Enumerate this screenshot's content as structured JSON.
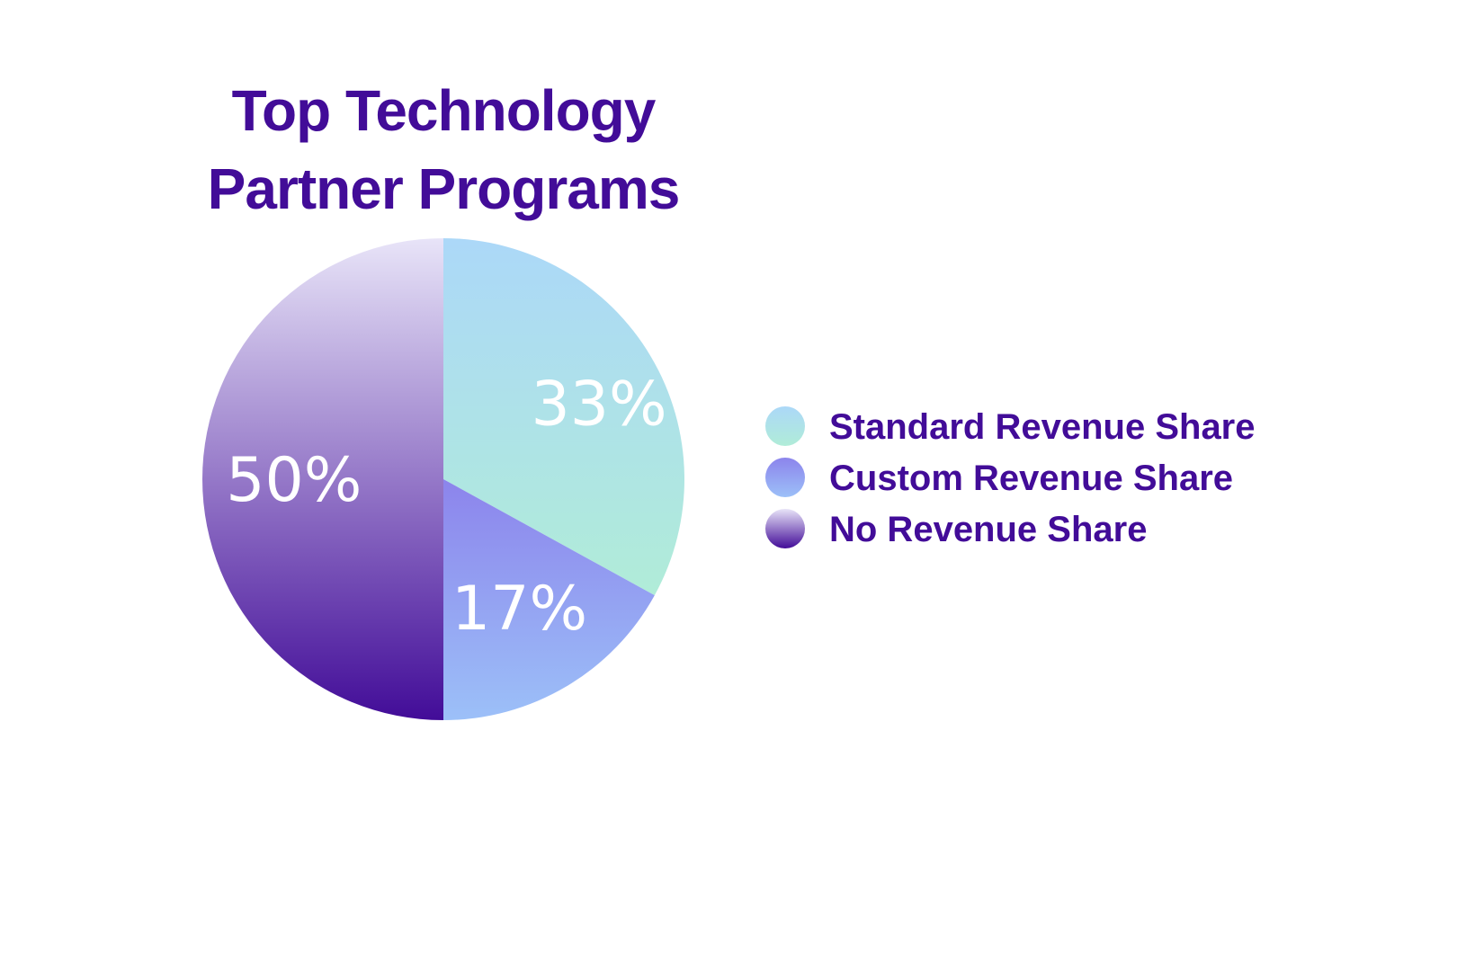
{
  "chart_data": {
    "type": "pie",
    "title_lines": [
      "Top Technology",
      "Partner Programs"
    ],
    "slices": [
      {
        "label": "Standard Revenue Share",
        "value": 33,
        "display": "33%",
        "gradient": [
          "#acd8f8",
          "#b0ecd8"
        ]
      },
      {
        "label": "Custom Revenue Share",
        "value": 17,
        "display": "17%",
        "gradient": [
          "#8c84ec",
          "#9cc0f8"
        ]
      },
      {
        "label": "No Revenue Share",
        "value": 50,
        "display": "50%",
        "gradient": [
          "#e8e4f8",
          "#420c98"
        ]
      }
    ],
    "legend_position": "right"
  },
  "colors": {
    "title": "#420c98",
    "legend_text": "#420c98",
    "slice_label": "#ffffff",
    "background": "#ffffff"
  }
}
